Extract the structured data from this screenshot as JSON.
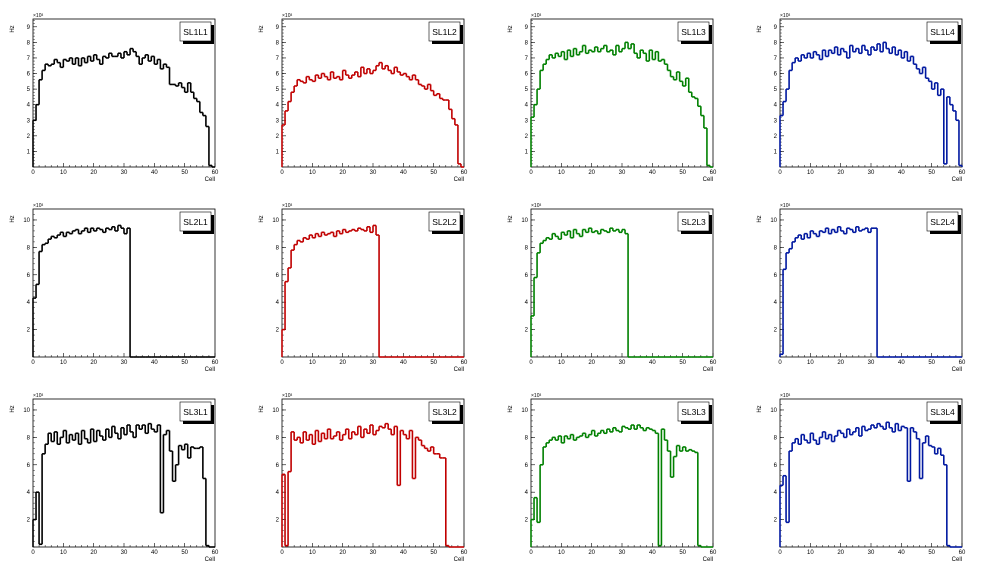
{
  "chart_data": [
    {
      "title": "SL1L1",
      "color": "#000000",
      "xlabel": "Cell",
      "ylabel": "Hz",
      "exponent": "×10³",
      "xlim": [
        0,
        60
      ],
      "ylim": [
        0,
        9.5
      ],
      "yticks": [
        1,
        2,
        3,
        4,
        5,
        6,
        7,
        8,
        9
      ],
      "xticks": [
        0,
        10,
        20,
        30,
        40,
        50,
        60
      ],
      "type": "histogram",
      "values": [
        3,
        4,
        5.6,
        6.2,
        6.6,
        6.5,
        6.6,
        6.9,
        6.7,
        6.4,
        6.9,
        6.8,
        7.0,
        6.6,
        7.0,
        6.5,
        7.0,
        6.7,
        7.1,
        6.8,
        7.2,
        6.9,
        6.6,
        7.1,
        7.0,
        7.3,
        7.1,
        7.1,
        7.3,
        7.0,
        7.4,
        7.2,
        7.6,
        7.4,
        7.1,
        6.6,
        7.0,
        7.2,
        6.8,
        7.1,
        6.6,
        6.9,
        6.3,
        6.6,
        6.4,
        5.3,
        5.3,
        5.2,
        5.4,
        5.1,
        4.8,
        5.4,
        4.8,
        4.4,
        4.2,
        3.5,
        3.3,
        2.6,
        0.1
      ]
    },
    {
      "title": "SL1L2",
      "color": "#c00000",
      "xlabel": "Cell",
      "ylabel": "Hz",
      "exponent": "×10³",
      "xlim": [
        0,
        60
      ],
      "ylim": [
        0,
        9.5
      ],
      "yticks": [
        1,
        2,
        3,
        4,
        5,
        6,
        7,
        8,
        9
      ],
      "xticks": [
        0,
        10,
        20,
        30,
        40,
        50,
        60
      ],
      "type": "histogram",
      "values": [
        2.7,
        3.6,
        4.2,
        4.8,
        5.2,
        5.6,
        5.5,
        5.4,
        5.8,
        5.6,
        5.5,
        5.9,
        5.7,
        6.0,
        5.8,
        5.6,
        6.1,
        5.7,
        5.8,
        5.6,
        6.2,
        5.9,
        5.7,
        5.9,
        6.1,
        5.8,
        6.4,
        6.0,
        6.3,
        6.0,
        6.2,
        6.5,
        6.7,
        6.3,
        6.5,
        6.2,
        6.0,
        6.4,
        6.1,
        5.9,
        6.0,
        5.8,
        5.6,
        5.9,
        5.6,
        5.3,
        5.2,
        5.0,
        5.3,
        4.9,
        4.6,
        4.7,
        4.4,
        4.3,
        4.3,
        3.7,
        3.1,
        2.7,
        0.2
      ]
    },
    {
      "title": "SL1L3",
      "color": "#008000",
      "xlabel": "Cell",
      "ylabel": "Hz",
      "exponent": "×10³",
      "xlim": [
        0,
        60
      ],
      "ylim": [
        0,
        9.5
      ],
      "yticks": [
        1,
        2,
        3,
        4,
        5,
        6,
        7,
        8,
        9
      ],
      "xticks": [
        0,
        10,
        20,
        30,
        40,
        50,
        60
      ],
      "type": "histogram",
      "values": [
        3.2,
        4,
        5,
        6.2,
        6.6,
        6.9,
        7.2,
        7.0,
        7.3,
        7.1,
        7.4,
        6.9,
        7.5,
        7.1,
        7.6,
        7.2,
        7.4,
        7.8,
        7.3,
        7.5,
        7.4,
        7.7,
        7.4,
        7.6,
        7.8,
        7.4,
        7.5,
        7.2,
        7.8,
        7.4,
        7.6,
        8.0,
        7.6,
        7.9,
        7.3,
        7.0,
        7.5,
        7.3,
        6.8,
        7.5,
        6.9,
        7.4,
        6.8,
        6.9,
        6.6,
        6.2,
        5.8,
        5.6,
        6.1,
        5.5,
        5.2,
        5.7,
        4.8,
        4.5,
        4.4,
        3.9,
        3.3,
        2.5,
        0.1
      ]
    },
    {
      "title": "SL1L4",
      "color": "#0018a0",
      "xlabel": "Cell",
      "ylabel": "Hz",
      "exponent": "×10³",
      "xlim": [
        0,
        60
      ],
      "ylim": [
        0,
        9.5
      ],
      "yticks": [
        1,
        2,
        3,
        4,
        5,
        6,
        7,
        8,
        9
      ],
      "xticks": [
        0,
        10,
        20,
        30,
        40,
        50,
        60
      ],
      "type": "histogram",
      "values": [
        3.3,
        4.2,
        5.0,
        6.2,
        6.7,
        7.0,
        6.8,
        7.2,
        7.0,
        7.3,
        7.0,
        7.4,
        7.2,
        6.9,
        7.5,
        7.1,
        7.5,
        7.3,
        7.7,
        7.2,
        7.6,
        7.4,
        7.0,
        7.8,
        7.4,
        7.6,
        7.3,
        7.8,
        7.5,
        7.2,
        7.7,
        7.5,
        7.9,
        7.4,
        8.0,
        7.6,
        7.3,
        7.7,
        7.2,
        7.5,
        7.0,
        7.4,
        6.8,
        7.1,
        6.6,
        6.3,
        6.0,
        6.4,
        5.7,
        5.5,
        5.0,
        5.4,
        4.6,
        5.0,
        0.2,
        4.5,
        4.0,
        3.6,
        3.0,
        0.1
      ]
    },
    {
      "title": "SL2L1",
      "color": "#000000",
      "xlabel": "Cell",
      "ylabel": "Hz",
      "exponent": "×10³",
      "xlim": [
        0,
        60
      ],
      "ylim": [
        0,
        10.8
      ],
      "yticks": [
        2,
        4,
        6,
        8,
        10
      ],
      "xticks": [
        0,
        10,
        20,
        30,
        40,
        50,
        60
      ],
      "type": "histogram",
      "values": [
        4.3,
        5.3,
        7.7,
        8.2,
        8.3,
        8.6,
        8.8,
        8.7,
        8.9,
        9.1,
        8.8,
        9.1,
        9.0,
        9.2,
        9.3,
        9.0,
        9.2,
        9.4,
        9.1,
        9.4,
        9.2,
        9.4,
        9.3,
        9.1,
        9.4,
        9.3,
        9.5,
        9.2,
        9.6,
        9.4,
        9.0,
        9.4,
        0,
        0,
        0,
        0,
        0,
        0,
        0,
        0,
        0,
        0,
        0,
        0,
        0,
        0,
        0,
        0,
        0,
        0,
        0,
        0,
        0,
        0,
        0,
        0,
        0,
        0,
        0,
        0
      ]
    },
    {
      "title": "SL2L2",
      "color": "#c00000",
      "xlabel": "Cell",
      "ylabel": "Hz",
      "exponent": "×10³",
      "xlim": [
        0,
        60
      ],
      "ylim": [
        0,
        10.8
      ],
      "yticks": [
        2,
        4,
        6,
        8,
        10
      ],
      "xticks": [
        0,
        10,
        20,
        30,
        40,
        50,
        60
      ],
      "type": "histogram",
      "values": [
        2.0,
        5.5,
        6.5,
        7.8,
        8.2,
        8.5,
        8.4,
        8.7,
        8.6,
        8.9,
        8.7,
        9.0,
        8.8,
        9.1,
        8.9,
        9.0,
        9.1,
        8.8,
        9.2,
        9.0,
        9.3,
        9.1,
        9.2,
        9.3,
        9.2,
        9.4,
        9.3,
        9.2,
        9.5,
        9.1,
        9.6,
        8.9,
        0,
        0,
        0,
        0,
        0,
        0,
        0,
        0,
        0,
        0,
        0,
        0,
        0,
        0,
        0,
        0,
        0,
        0,
        0,
        0,
        0,
        0,
        0,
        0,
        0,
        0,
        0,
        0
      ]
    },
    {
      "title": "SL2L3",
      "color": "#008000",
      "xlabel": "Cell",
      "ylabel": "Hz",
      "exponent": "×10³",
      "xlim": [
        0,
        60
      ],
      "ylim": [
        0,
        10.8
      ],
      "yticks": [
        2,
        4,
        6,
        8,
        10
      ],
      "xticks": [
        0,
        10,
        20,
        30,
        40,
        50,
        60
      ],
      "type": "histogram",
      "values": [
        3.0,
        5.8,
        7.6,
        8.3,
        8.5,
        8.7,
        8.6,
        9.0,
        8.8,
        8.6,
        9.1,
        8.9,
        9.2,
        8.7,
        9.3,
        9.0,
        8.8,
        9.3,
        9.1,
        9.4,
        9.1,
        9.2,
        9.0,
        9.3,
        9.2,
        9.1,
        9.4,
        9.2,
        9.3,
        9.1,
        9.3,
        9.0,
        0,
        0,
        0,
        0,
        0,
        0,
        0,
        0,
        0,
        0,
        0,
        0,
        0,
        0,
        0,
        0,
        0,
        0,
        0,
        0,
        0,
        0,
        0,
        0,
        0,
        0,
        0,
        0
      ]
    },
    {
      "title": "SL2L4",
      "color": "#0018a0",
      "xlabel": "Cell",
      "ylabel": "Hz",
      "exponent": "×10³",
      "xlim": [
        0,
        60
      ],
      "ylim": [
        0,
        10.8
      ],
      "yticks": [
        2,
        4,
        6,
        8,
        10
      ],
      "xticks": [
        0,
        10,
        20,
        30,
        40,
        50,
        60
      ],
      "type": "histogram",
      "values": [
        0.2,
        6.4,
        7.6,
        7.9,
        8.4,
        8.7,
        8.9,
        8.6,
        9.0,
        8.7,
        9.2,
        9.0,
        8.8,
        9.2,
        9.1,
        9.4,
        9.0,
        9.3,
        9.1,
        9.5,
        9.2,
        9.0,
        9.4,
        9.3,
        9.1,
        9.5,
        9.2,
        9.3,
        9.4,
        9.1,
        9.4,
        9.4,
        0,
        0,
        0,
        0,
        0,
        0,
        0,
        0,
        0,
        0,
        0,
        0,
        0,
        0,
        0,
        0,
        0,
        0,
        0,
        0,
        0,
        0,
        0,
        0,
        0,
        0,
        0,
        0
      ]
    },
    {
      "title": "SL3L1",
      "color": "#000000",
      "xlabel": "Cell",
      "ylabel": "Hz",
      "exponent": "×10³",
      "xlim": [
        0,
        60
      ],
      "ylim": [
        0,
        10.8
      ],
      "yticks": [
        2,
        4,
        6,
        8,
        10
      ],
      "xticks": [
        0,
        10,
        20,
        30,
        40,
        50,
        60
      ],
      "type": "histogram",
      "values": [
        2.0,
        4.0,
        0.2,
        6.8,
        7.5,
        8.3,
        7.7,
        8.4,
        7.5,
        8.0,
        8.5,
        7.6,
        8.2,
        7.8,
        8.3,
        7.5,
        8.5,
        7.9,
        7.6,
        8.6,
        7.7,
        8.5,
        8.1,
        7.8,
        8.6,
        8.0,
        8.8,
        8.3,
        7.9,
        8.7,
        8.2,
        8.9,
        8.4,
        8.0,
        8.9,
        8.6,
        8.9,
        8.3,
        9.0,
        8.6,
        8.4,
        8.9,
        2.5,
        8.2,
        8.5,
        7.0,
        4.8,
        6.0,
        7.4,
        7.1,
        7.5,
        6.5,
        7.3,
        7.2,
        7.2,
        7.3,
        5.0,
        0.1,
        0,
        0
      ]
    },
    {
      "title": "SL3L2",
      "color": "#c00000",
      "xlabel": "Cell",
      "ylabel": "Hz",
      "exponent": "×10³",
      "xlim": [
        0,
        60
      ],
      "ylim": [
        0,
        10.8
      ],
      "yticks": [
        2,
        4,
        6,
        8,
        10
      ],
      "xticks": [
        0,
        10,
        20,
        30,
        40,
        50,
        60
      ],
      "type": "histogram",
      "values": [
        5.3,
        0.1,
        5.5,
        8.4,
        7.8,
        8.0,
        7.6,
        8.4,
        7.8,
        8.2,
        7.5,
        8.5,
        7.7,
        8.3,
        7.9,
        8.6,
        7.9,
        8.1,
        8.4,
        7.8,
        8.2,
        8.6,
        7.9,
        8.4,
        8.2,
        8.8,
        8.0,
        8.6,
        8.3,
        8.9,
        8.2,
        8.5,
        8.8,
        8.7,
        9.0,
        8.6,
        8.2,
        8.8,
        4.5,
        8.5,
        8.2,
        7.9,
        8.5,
        5.0,
        8.0,
        7.8,
        7.4,
        7.2,
        7.0,
        7.3,
        6.8,
        6.8,
        6.5,
        6.5,
        0.1,
        0,
        0,
        0,
        0,
        0
      ]
    },
    {
      "title": "SL3L3",
      "color": "#008000",
      "xlabel": "Cell",
      "ylabel": "Hz",
      "exponent": "×10³",
      "xlim": [
        0,
        60
      ],
      "ylim": [
        0,
        10.8
      ],
      "yticks": [
        2,
        4,
        6,
        8,
        10
      ],
      "xticks": [
        0,
        10,
        20,
        30,
        40,
        50,
        60
      ],
      "type": "histogram",
      "values": [
        2.0,
        3.6,
        1.8,
        6.0,
        7.3,
        7.6,
        7.8,
        8.0,
        7.8,
        8.1,
        7.6,
        8.1,
        7.9,
        8.2,
        7.8,
        8.0,
        8.1,
        8.3,
        8.0,
        8.2,
        8.5,
        8.1,
        8.3,
        8.5,
        8.3,
        8.6,
        8.4,
        8.7,
        8.5,
        8.4,
        8.8,
        8.7,
        8.6,
        8.9,
        8.6,
        8.9,
        8.7,
        8.5,
        8.7,
        8.6,
        8.5,
        8.3,
        0.1,
        8.6,
        7.8,
        7.0,
        5.1,
        6.6,
        7.4,
        7.0,
        7.3,
        7.0,
        7.1,
        7.0,
        6.9,
        0.1,
        0,
        0,
        0,
        0
      ]
    },
    {
      "title": "SL3L4",
      "color": "#0018a0",
      "xlabel": "Cell",
      "ylabel": "Hz",
      "exponent": "×10³",
      "xlim": [
        0,
        60
      ],
      "ylim": [
        0,
        10.8
      ],
      "yticks": [
        2,
        4,
        6,
        8,
        10
      ],
      "xticks": [
        0,
        10,
        20,
        30,
        40,
        50,
        60
      ],
      "type": "histogram",
      "values": [
        4.5,
        5.2,
        1.8,
        7.0,
        7.6,
        7.9,
        7.5,
        8.2,
        7.8,
        7.6,
        8.3,
        7.8,
        7.5,
        8.0,
        8.4,
        7.9,
        8.2,
        7.7,
        8.1,
        8.5,
        8.3,
        8.0,
        8.6,
        8.2,
        8.4,
        8.7,
        8.1,
        8.8,
        8.5,
        8.6,
        8.9,
        8.7,
        9.0,
        8.8,
        8.6,
        9.1,
        8.7,
        8.4,
        9.0,
        8.5,
        8.8,
        8.7,
        4.8,
        8.7,
        8.4,
        7.9,
        5.0,
        7.6,
        8.1,
        7.4,
        7.3,
        6.8,
        7.2,
        6.7,
        6.0,
        0.1,
        0,
        0,
        0,
        0
      ]
    }
  ]
}
